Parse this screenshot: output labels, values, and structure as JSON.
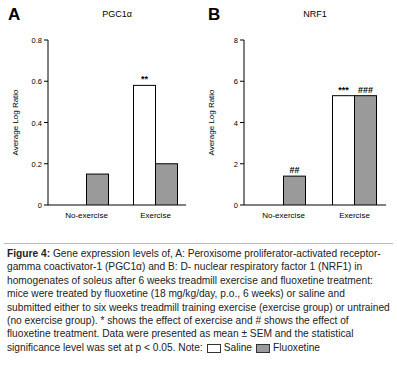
{
  "chart_data": [
    {
      "type": "bar",
      "panel_label": "A",
      "title": "PGC1α",
      "y_label": "Average Log Ratio",
      "categories": [
        "No-exercise",
        "Exercise"
      ],
      "series": [
        {
          "name": "Saline",
          "color": "#ffffff",
          "values": [
            0,
            0.58
          ]
        },
        {
          "name": "Fluoxetine",
          "color": "#9a9a9a",
          "values": [
            0.15,
            0.2
          ]
        }
      ],
      "ylim": [
        0,
        0.8
      ],
      "yticks": [
        0,
        0.2,
        0.4,
        0.6,
        0.8
      ],
      "annotations": [
        {
          "text": "**",
          "series": 0,
          "category": 1
        }
      ]
    },
    {
      "type": "bar",
      "panel_label": "B",
      "title": "NRF1",
      "y_label": "Average Log Ratio",
      "categories": [
        "No-exercise",
        "Exercise"
      ],
      "series": [
        {
          "name": "Saline",
          "color": "#ffffff",
          "values": [
            0,
            5.3
          ]
        },
        {
          "name": "Fluoxetine",
          "color": "#9a9a9a",
          "values": [
            1.4,
            5.3
          ]
        }
      ],
      "ylim": [
        0,
        8
      ],
      "yticks": [
        0,
        2,
        4,
        6,
        8
      ],
      "annotations": [
        {
          "text": "##",
          "series": 1,
          "category": 0
        },
        {
          "text": "***",
          "series": 0,
          "category": 1
        },
        {
          "text": "###",
          "series": 1,
          "category": 1
        }
      ]
    }
  ],
  "caption": {
    "figure_label": "Figure 4:",
    "text": "Gene expression levels of, A: Peroxisome proliferator-activated receptor-gamma coactivator-1 (PGC1α) and B: D- nuclear respiratory factor 1 (NRF1) in homogenates of soleus after 6 weeks treadmill exercise and fluoxetine treatment: mice were treated by fluoxetine (18 mg/kg/day, p.o., 6 weeks) or saline and submitted either to six weeks treadmill training exercise (exercise group) or untrained (no exercise group). * shows the effect of exercise and # shows the effect of fluoxetine treatment. Data were presented as mean ± SEM and the statistical significance level was set at p < 0.05.",
    "note_label": "Note:"
  }
}
